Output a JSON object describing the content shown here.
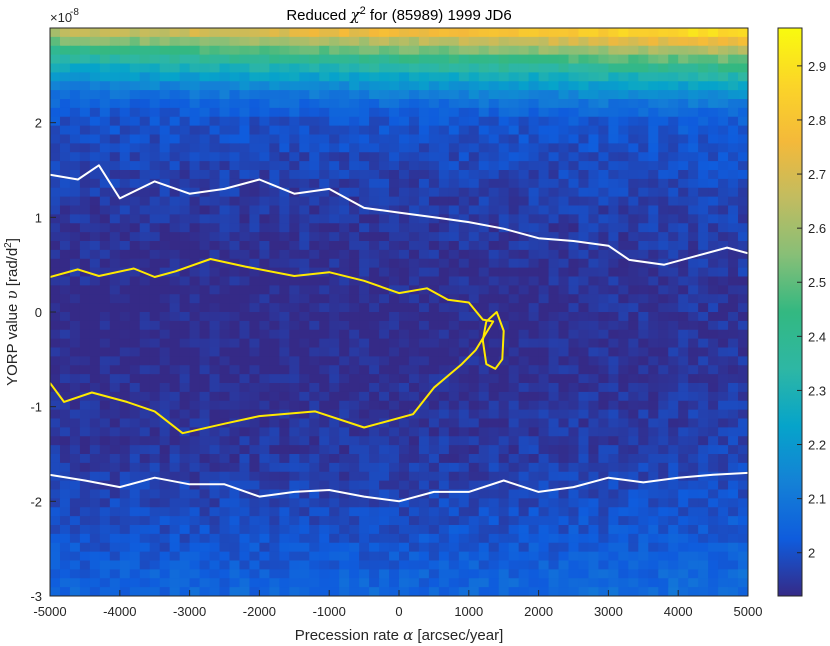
{
  "chart_data": {
    "type": "heatmap",
    "title_prefix": "Reduced ",
    "title_symbol": "χ",
    "title_sup": "2",
    "title_suffix": " for (85989) 1999 JD6",
    "xlabel_prefix": "Precession rate ",
    "xlabel_symbol": "α",
    "xlabel_suffix": " [arcsec/year]",
    "ylabel_prefix": "YORP value ",
    "ylabel_symbol": "υ",
    "ylabel_unit": " [rad/d",
    "ylabel_sup": "2",
    "ylabel_close": "]",
    "y_exponent_base": "×10",
    "y_exponent_power": "-8",
    "xlim": [
      -5000,
      5000
    ],
    "ylim": [
      -3,
      3
    ],
    "x_ticks": [
      -5000,
      -4000,
      -3000,
      -2000,
      -1000,
      0,
      1000,
      2000,
      3000,
      4000,
      5000
    ],
    "y_ticks": [
      -3,
      -2,
      -1,
      0,
      1,
      2
    ],
    "colorbar": {
      "range": [
        1.92,
        2.97
      ],
      "ticks": [
        2,
        2.1,
        2.2,
        2.3,
        2.4,
        2.5,
        2.6,
        2.7,
        2.8,
        2.9
      ],
      "colormap": "parula"
    },
    "grid": {
      "nx": 70,
      "ny": 64
    },
    "heatmap_model": {
      "min_value": 1.92,
      "center_y": -0.2,
      "center_x": -2500,
      "quadratic_coeff": 0.017,
      "top_boost_start_y": 2.0,
      "top_boost_coeff": 0.6,
      "top_right_boost": 0.25,
      "noise_amplitude": 0.035
    },
    "contours": [
      {
        "name": "inner",
        "color": "#ffea00",
        "points": [
          [
            -5000,
            0.37
          ],
          [
            -4600,
            0.45
          ],
          [
            -4300,
            0.38
          ],
          [
            -3800,
            0.46
          ],
          [
            -3500,
            0.37
          ],
          [
            -3200,
            0.43
          ],
          [
            -2700,
            0.56
          ],
          [
            -2200,
            0.48
          ],
          [
            -1500,
            0.38
          ],
          [
            -1000,
            0.42
          ],
          [
            -500,
            0.33
          ],
          [
            0,
            0.2
          ],
          [
            400,
            0.25
          ],
          [
            700,
            0.13
          ],
          [
            1000,
            0.1
          ],
          [
            1200,
            -0.08
          ],
          [
            1350,
            -0.1
          ],
          [
            1100,
            -0.4
          ],
          [
            900,
            -0.55
          ],
          [
            500,
            -0.8
          ],
          [
            200,
            -1.08
          ],
          [
            -500,
            -1.22
          ],
          [
            -1200,
            -1.05
          ],
          [
            -2000,
            -1.1
          ],
          [
            -2500,
            -1.18
          ],
          [
            -3100,
            -1.28
          ],
          [
            -3500,
            -1.05
          ],
          [
            -3900,
            -0.95
          ],
          [
            -4400,
            -0.85
          ],
          [
            -4800,
            -0.95
          ],
          [
            -5000,
            -0.75
          ]
        ]
      },
      {
        "name": "island",
        "color": "#ffea00",
        "points": [
          [
            1250,
            -0.1
          ],
          [
            1400,
            0.0
          ],
          [
            1500,
            -0.2
          ],
          [
            1480,
            -0.5
          ],
          [
            1380,
            -0.6
          ],
          [
            1250,
            -0.55
          ],
          [
            1200,
            -0.3
          ],
          [
            1250,
            -0.1
          ]
        ]
      },
      {
        "name": "outer-top",
        "color": "#ffffff",
        "points": [
          [
            -5000,
            1.45
          ],
          [
            -4600,
            1.4
          ],
          [
            -4300,
            1.55
          ],
          [
            -4000,
            1.2
          ],
          [
            -3500,
            1.38
          ],
          [
            -3000,
            1.25
          ],
          [
            -2500,
            1.3
          ],
          [
            -2000,
            1.4
          ],
          [
            -1500,
            1.25
          ],
          [
            -1000,
            1.3
          ],
          [
            -500,
            1.1
          ],
          [
            0,
            1.05
          ],
          [
            500,
            1.0
          ],
          [
            1000,
            0.95
          ],
          [
            1500,
            0.88
          ],
          [
            2000,
            0.78
          ],
          [
            2500,
            0.75
          ],
          [
            3000,
            0.7
          ],
          [
            3300,
            0.55
          ],
          [
            3800,
            0.5
          ],
          [
            4300,
            0.6
          ],
          [
            4700,
            0.68
          ],
          [
            5000,
            0.62
          ]
        ]
      },
      {
        "name": "outer-bottom",
        "color": "#ffffff",
        "points": [
          [
            -5000,
            -1.72
          ],
          [
            -4500,
            -1.78
          ],
          [
            -4000,
            -1.85
          ],
          [
            -3500,
            -1.75
          ],
          [
            -3000,
            -1.82
          ],
          [
            -2500,
            -1.82
          ],
          [
            -2000,
            -1.95
          ],
          [
            -1500,
            -1.9
          ],
          [
            -1000,
            -1.88
          ],
          [
            -500,
            -1.95
          ],
          [
            0,
            -2.0
          ],
          [
            500,
            -1.9
          ],
          [
            1000,
            -1.9
          ],
          [
            1500,
            -1.78
          ],
          [
            2000,
            -1.9
          ],
          [
            2500,
            -1.85
          ],
          [
            3000,
            -1.75
          ],
          [
            3500,
            -1.8
          ],
          [
            4000,
            -1.75
          ],
          [
            4500,
            -1.72
          ],
          [
            5000,
            -1.7
          ]
        ]
      }
    ]
  }
}
